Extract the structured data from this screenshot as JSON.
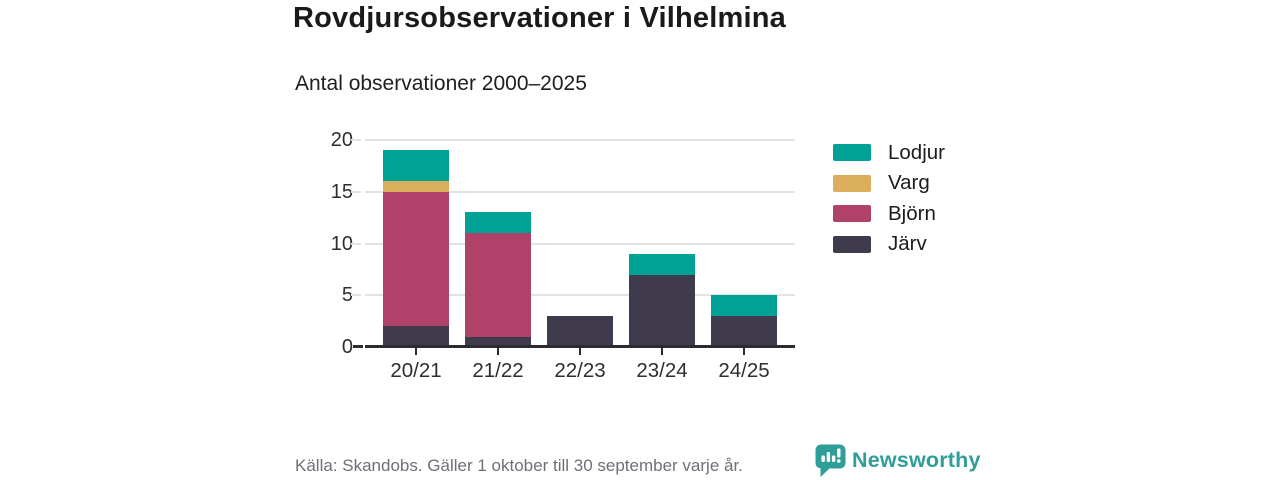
{
  "header": {
    "title": "Rovdjursobservationer i Vilhelmina",
    "subtitle": "Antal observationer 2000–2025"
  },
  "chart_data": {
    "type": "bar",
    "stacked": true,
    "title": "Rovdjursobservationer i Vilhelmina",
    "subtitle": "Antal observationer 2000–2025",
    "categories": [
      "20/21",
      "21/22",
      "22/23",
      "23/24",
      "24/25"
    ],
    "series": [
      {
        "name": "Järv",
        "color": "#3F3B4D",
        "values": [
          2,
          1,
          3,
          7,
          3
        ]
      },
      {
        "name": "Björn",
        "color": "#B04168",
        "values": [
          13,
          10,
          0,
          0,
          0
        ]
      },
      {
        "name": "Varg",
        "color": "#DBAE5D",
        "values": [
          1,
          0,
          0,
          0,
          0
        ]
      },
      {
        "name": "Lodjur",
        "color": "#00A296",
        "values": [
          3,
          2,
          0,
          2,
          2
        ]
      }
    ],
    "totals": [
      19,
      13,
      3,
      9,
      5
    ],
    "xlabel": "",
    "ylabel": "",
    "ylim": [
      0,
      20
    ],
    "yticks": [
      0,
      5,
      10,
      15,
      20
    ],
    "grid": true,
    "legend_position": "right",
    "legend_order": [
      "Lodjur",
      "Varg",
      "Björn",
      "Järv"
    ]
  },
  "legend": {
    "items": [
      {
        "label": "Lodjur",
        "color": "#00A296"
      },
      {
        "label": "Varg",
        "color": "#DBAE5D"
      },
      {
        "label": "Björn",
        "color": "#B04168"
      },
      {
        "label": "Järv",
        "color": "#3F3B4D"
      }
    ]
  },
  "footer": {
    "source": "Källa: Skandobs. Gäller 1 oktober till 30 september varje år.",
    "brand": "Newsworthy"
  },
  "colors": {
    "lodjur_teal": "#00A296",
    "varg_gold": "#DBAE5D",
    "bjorn_maroon": "#B04168",
    "jarv_dark": "#3F3B4D",
    "brand_teal": "#2F9E98",
    "grid": "#E3E3E5",
    "axis": "#2B2B30",
    "footer_text": "#6F6F78"
  }
}
